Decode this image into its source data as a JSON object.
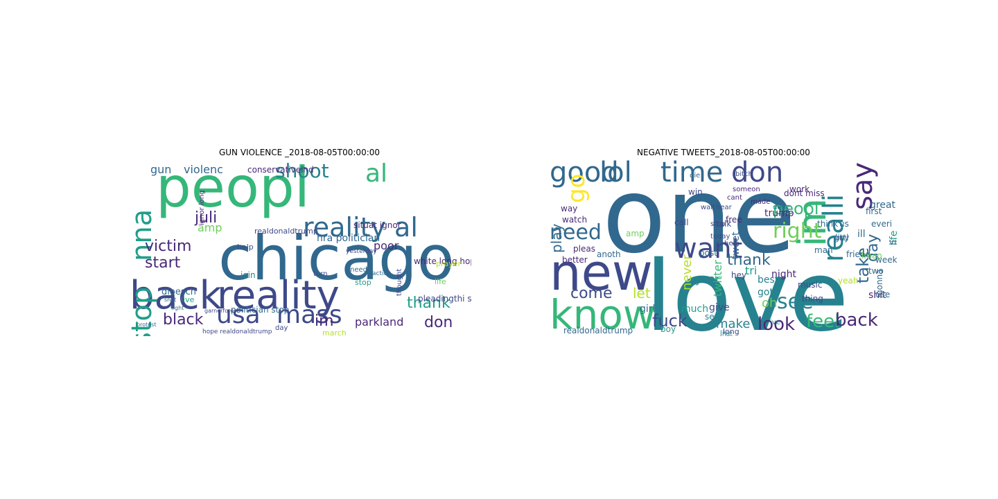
{
  "panels": [
    {
      "title": "GUN VIOLENCE _2018-08-05T00:00:00",
      "words": [
        "peopl",
        "chicago",
        "back",
        "reality",
        "usa",
        "mass",
        "stop",
        "nna",
        "shoot",
        "juli",
        "al",
        "reality al",
        "start",
        "victim",
        "black",
        "thank",
        "parkland",
        "don",
        "im",
        "gun",
        "violenc",
        "amp",
        "poor",
        "nra politician",
        "situat ignor",
        "conservativeind",
        "white long hope",
        "dloesch",
        "ignor long",
        "politician stop",
        "live",
        "help",
        "join",
        "realdonaldtrump",
        "pleadingthi situat",
        "hope realdonaldtrump",
        "day",
        "life",
        "prayer",
        "thought",
        "march",
        "need",
        "stop",
        "turn",
        "action",
        "yesterday",
        "shot",
        "fight",
        "protest",
        "garnerforest"
      ]
    },
    {
      "title": "NEGATIVE TWEETS_2018-08-05T00:00:00",
      "words": [
        "one",
        "love",
        "new",
        "know",
        "im",
        "good",
        "lol",
        "time",
        "don",
        "go",
        "realli",
        "say",
        "want",
        "need",
        "play",
        "peopl",
        "right",
        "see",
        "take",
        "day",
        "come",
        "let",
        "fuck",
        "make",
        "look",
        "feel",
        "back",
        "thank",
        "watch",
        "pleas",
        "amp",
        "better",
        "way",
        "trump",
        "tri",
        "night",
        "best",
        "got",
        "girl",
        "much",
        "sex",
        "year",
        "shit",
        "twitter",
        "never",
        "tweet",
        "talk",
        "call",
        "free",
        "post",
        "realdonaldtrump",
        "oh",
        "cute",
        "photo",
        "friend",
        "life",
        "video",
        "gonna",
        "use",
        "week",
        "boy",
        "guy",
        "two",
        "ill",
        "us",
        "littl",
        "music",
        "think",
        "work",
        "yeah",
        "thing",
        "done",
        "dont miss",
        "first",
        "everi",
        "great",
        "lmao",
        "made",
        "someon",
        "cant",
        "win",
        "wait",
        "hear",
        "stop",
        "today",
        "help",
        "long",
        "without",
        "via",
        "give",
        "live",
        "alway",
        "bitch",
        "die",
        "anoth",
        "man",
        "hey",
        "ive"
      ]
    }
  ],
  "colors": [
    "#440154",
    "#482878",
    "#3e4989",
    "#31688e",
    "#26828e",
    "#1f9e89",
    "#35b779",
    "#6ece58",
    "#b5de2b",
    "#fde725"
  ]
}
